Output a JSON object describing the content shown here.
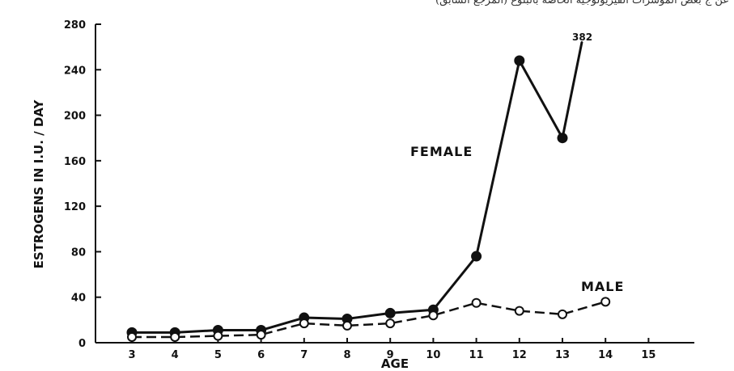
{
  "header_text": "عن ج بعض المؤشرات الفيزيولوجية الخاصة بالبلوغ (المرجع السابق)",
  "chart_data": {
    "type": "line",
    "xlabel": "AGE",
    "ylabel": "ESTROGENS IN I.U. / DAY",
    "x_ticks": [
      3,
      4,
      5,
      6,
      7,
      8,
      9,
      10,
      11,
      12,
      13,
      14,
      15
    ],
    "y_ticks": [
      0,
      40,
      80,
      120,
      160,
      200,
      240,
      280
    ],
    "xlim": [
      2,
      16
    ],
    "ylim": [
      0,
      280
    ],
    "grid": false,
    "series": [
      {
        "name": "FEMALE",
        "style": "solid",
        "marker": "filled-circle",
        "color": "#111111",
        "x": [
          3,
          4,
          5,
          6,
          7,
          8,
          9,
          10,
          11,
          12,
          13
        ],
        "y": [
          9,
          9,
          11,
          11,
          22,
          21,
          26,
          29,
          76,
          248,
          180
        ]
      },
      {
        "name": "MALE",
        "style": "dashed",
        "marker": "open-circle",
        "color": "#111111",
        "x": [
          3,
          4,
          5,
          6,
          7,
          8,
          9,
          10,
          11,
          12,
          13,
          14
        ],
        "y": [
          5,
          5,
          6,
          7,
          17,
          15,
          17,
          24,
          35,
          28,
          25,
          36
        ]
      }
    ],
    "annotations": {
      "offscale_value": "382",
      "female_label": "FEMALE",
      "male_label": "MALE"
    }
  }
}
